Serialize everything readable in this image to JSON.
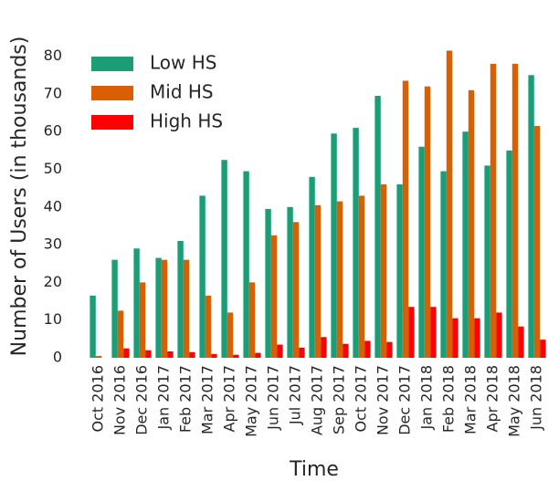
{
  "chart_data": {
    "type": "bar",
    "x_label": "Time",
    "y_label": "Number of Users (in thousands)",
    "categories": [
      "Oct 2016",
      "Nov 2016",
      "Dec 2016",
      "Jan 2017",
      "Feb 2017",
      "Mar 2017",
      "Apr 2017",
      "May 2017",
      "Jun 2017",
      "Jul 2017",
      "Aug 2017",
      "Sep 2017",
      "Oct 2017",
      "Nov 2017",
      "Dec 2017",
      "Jan 2018",
      "Feb 2018",
      "Mar 2018",
      "Apr 2018",
      "May 2018",
      "Jun 2018"
    ],
    "series": [
      {
        "name": "Low HS",
        "color": "#1b9e77",
        "values": [
          16.5,
          26,
          29,
          26.5,
          31,
          43,
          52.5,
          49.5,
          39.5,
          40,
          48,
          59.5,
          61,
          69.5,
          46,
          56,
          49.5,
          60,
          51,
          55,
          75
        ]
      },
      {
        "name": "Mid HS",
        "color": "#d95f02",
        "values": [
          0.5,
          12.5,
          20,
          26,
          26,
          16.5,
          12,
          20,
          32.5,
          36,
          40.5,
          41.5,
          43,
          46,
          73.5,
          72,
          81.5,
          71,
          78,
          78,
          61.5
        ]
      },
      {
        "name": "High HS",
        "color": "#ff0000",
        "values": [
          0,
          2.5,
          2,
          1.7,
          1.5,
          1,
          0.8,
          1.3,
          3.5,
          2.7,
          5.5,
          3.7,
          4.5,
          4.2,
          13.5,
          13.5,
          10.5,
          10.5,
          12,
          8.3,
          4.8
        ]
      }
    ],
    "ylim": [
      0,
      85
    ],
    "yticks": [
      0,
      10,
      20,
      30,
      40,
      50,
      60,
      70,
      80
    ],
    "legend": "upper left",
    "grid": false
  }
}
